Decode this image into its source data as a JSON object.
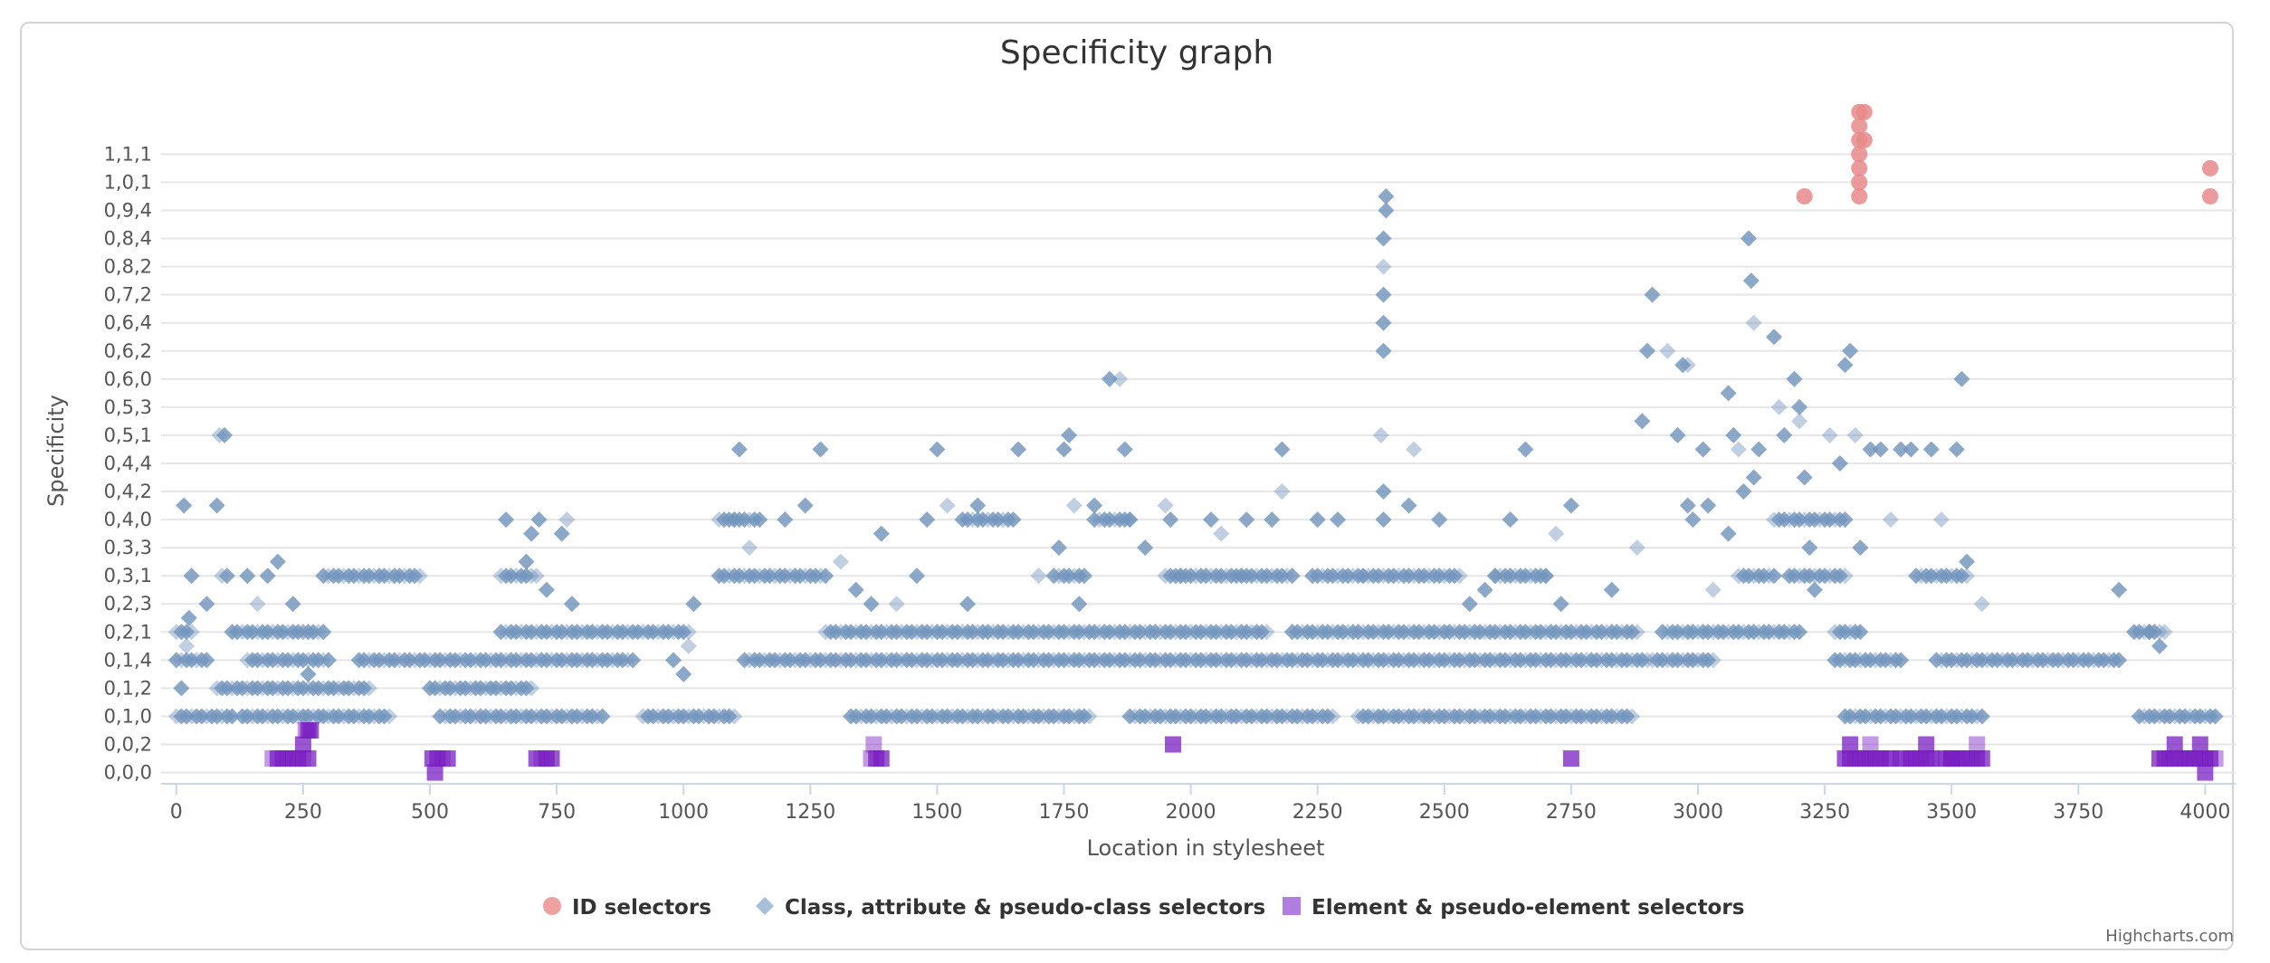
{
  "chart_data": {
    "type": "scatter",
    "title": "Specificity graph",
    "xlabel": "Location in stylesheet",
    "ylabel": "Specificity",
    "xlim": [
      -30,
      4060
    ],
    "x_ticks": [
      0,
      250,
      500,
      750,
      1000,
      1250,
      1500,
      1750,
      2000,
      2250,
      2500,
      2750,
      3000,
      3250,
      3500,
      3750,
      4000
    ],
    "y_categories": [
      "0,0,0",
      "0,0,2",
      "0,1,0",
      "0,1,2",
      "0,1,4",
      "0,2,1",
      "0,2,3",
      "0,3,1",
      "0,3,3",
      "0,4,0",
      "0,4,2",
      "0,4,4",
      "0,5,1",
      "0,5,3",
      "0,6,0",
      "0,6,2",
      "0,6,4",
      "0,7,2",
      "0,8,2",
      "0,8,4",
      "0,9,4",
      "1,0,1",
      "1,1,1"
    ],
    "legend_position": "bottom",
    "grid": true,
    "series": [
      {
        "name": "ID selectors",
        "color": "#e8898a",
        "marker": "circle",
        "points": [
          [
            3210,
            20.5
          ],
          [
            3318,
            20.5
          ],
          [
            3318,
            21
          ],
          [
            3318,
            21.5
          ],
          [
            3318,
            22
          ],
          [
            3318,
            22.5
          ],
          [
            3318,
            23
          ],
          [
            3318,
            23.5
          ],
          [
            3328,
            23.5
          ],
          [
            3328,
            22.5
          ],
          [
            4010,
            20.5
          ],
          [
            4010,
            21.5
          ]
        ]
      },
      {
        "name": "Class, attribute & pseudo-class selectors",
        "color": "#7395bd",
        "marker": "diamond",
        "bands": [
          [
            0,
            110,
            2
          ],
          [
            130,
            420,
            2
          ],
          [
            520,
            840,
            2
          ],
          [
            920,
            1100,
            2
          ],
          [
            1330,
            1800,
            2
          ],
          [
            1880,
            2280,
            2
          ],
          [
            2330,
            2870,
            2
          ],
          [
            3290,
            3560,
            2
          ],
          [
            3870,
            4020,
            2
          ],
          [
            80,
            380,
            3
          ],
          [
            500,
            700,
            3
          ],
          [
            0,
            60,
            4
          ],
          [
            140,
            300,
            4
          ],
          [
            360,
            900,
            4
          ],
          [
            1120,
            2900,
            4
          ],
          [
            2910,
            3030,
            4
          ],
          [
            3270,
            3400,
            4
          ],
          [
            3470,
            3830,
            4
          ],
          [
            0,
            30,
            5
          ],
          [
            110,
            290,
            5
          ],
          [
            640,
            1010,
            5
          ],
          [
            1280,
            2150,
            5
          ],
          [
            2200,
            2880,
            5
          ],
          [
            2930,
            3200,
            5
          ],
          [
            3270,
            3320,
            5
          ],
          [
            3860,
            3910,
            5
          ],
          [
            290,
            480,
            7
          ],
          [
            640,
            700,
            7
          ],
          [
            1070,
            1280,
            7
          ],
          [
            1730,
            1790,
            7
          ],
          [
            1950,
            2200,
            7
          ],
          [
            2240,
            2530,
            7
          ],
          [
            2600,
            2700,
            7
          ],
          [
            3080,
            3150,
            7
          ],
          [
            3180,
            3290,
            7
          ],
          [
            3430,
            3530,
            7
          ],
          [
            1070,
            1150,
            9
          ],
          [
            1550,
            1650,
            9
          ],
          [
            1810,
            1880,
            9
          ],
          [
            3150,
            3290,
            9
          ]
        ],
        "points": [
          [
            10,
            3
          ],
          [
            20,
            4.5
          ],
          [
            25,
            5.5
          ],
          [
            30,
            7
          ],
          [
            60,
            6
          ],
          [
            90,
            7
          ],
          [
            95,
            12
          ],
          [
            100,
            7
          ],
          [
            140,
            7
          ],
          [
            160,
            6
          ],
          [
            180,
            7
          ],
          [
            200,
            7.5
          ],
          [
            230,
            6
          ],
          [
            250,
            5
          ],
          [
            260,
            3.5
          ],
          [
            15,
            9.5
          ],
          [
            80,
            9.5
          ],
          [
            85,
            12
          ],
          [
            650,
            9
          ],
          [
            690,
            7.5
          ],
          [
            700,
            8.5
          ],
          [
            710,
            7
          ],
          [
            715,
            9
          ],
          [
            730,
            6.5
          ],
          [
            760,
            8.5
          ],
          [
            770,
            9
          ],
          [
            780,
            6
          ],
          [
            980,
            4
          ],
          [
            1000,
            3.5
          ],
          [
            1010,
            4.5
          ],
          [
            1020,
            6
          ],
          [
            1100,
            9
          ],
          [
            1110,
            11.5
          ],
          [
            1130,
            8
          ],
          [
            1200,
            9
          ],
          [
            1240,
            9.5
          ],
          [
            1270,
            11.5
          ],
          [
            1310,
            7.5
          ],
          [
            1340,
            6.5
          ],
          [
            1370,
            6
          ],
          [
            1390,
            8.5
          ],
          [
            1420,
            6
          ],
          [
            1460,
            7
          ],
          [
            1480,
            9
          ],
          [
            1500,
            11.5
          ],
          [
            1520,
            9.5
          ],
          [
            1560,
            6
          ],
          [
            1580,
            9.5
          ],
          [
            1660,
            11.5
          ],
          [
            1700,
            7
          ],
          [
            1740,
            8
          ],
          [
            1750,
            11.5
          ],
          [
            1760,
            12
          ],
          [
            1770,
            9.5
          ],
          [
            1780,
            6
          ],
          [
            1810,
            9.5
          ],
          [
            1840,
            14
          ],
          [
            1860,
            14
          ],
          [
            1870,
            11.5
          ],
          [
            1880,
            9
          ],
          [
            1910,
            8
          ],
          [
            1950,
            9.5
          ],
          [
            1960,
            9
          ],
          [
            1980,
            7
          ],
          [
            2040,
            9
          ],
          [
            2060,
            8.5
          ],
          [
            2100,
            7
          ],
          [
            2110,
            9
          ],
          [
            2160,
            9
          ],
          [
            2180,
            10
          ],
          [
            2180,
            11.5
          ],
          [
            2250,
            9
          ],
          [
            2290,
            9
          ],
          [
            2340,
            7
          ],
          [
            2380,
            15
          ],
          [
            2380,
            16
          ],
          [
            2380,
            17
          ],
          [
            2380,
            18
          ],
          [
            2380,
            19
          ],
          [
            2385,
            20
          ],
          [
            2385,
            20.5
          ],
          [
            2375,
            12
          ],
          [
            2380,
            10
          ],
          [
            2380,
            9
          ],
          [
            2430,
            9.5
          ],
          [
            2440,
            11.5
          ],
          [
            2490,
            9
          ],
          [
            2550,
            6
          ],
          [
            2580,
            6.5
          ],
          [
            2600,
            7
          ],
          [
            2630,
            9
          ],
          [
            2660,
            11.5
          ],
          [
            2700,
            7
          ],
          [
            2720,
            8.5
          ],
          [
            2730,
            6
          ],
          [
            2750,
            9.5
          ],
          [
            2830,
            6.5
          ],
          [
            2880,
            8
          ],
          [
            2890,
            12.5
          ],
          [
            2900,
            15
          ],
          [
            2910,
            17
          ],
          [
            2940,
            15
          ],
          [
            2960,
            12
          ],
          [
            2970,
            14.5
          ],
          [
            2980,
            9.5
          ],
          [
            2980,
            14.5
          ],
          [
            2990,
            9
          ],
          [
            3010,
            11.5
          ],
          [
            3020,
            9.5
          ],
          [
            3030,
            6.5
          ],
          [
            3060,
            13.5
          ],
          [
            3060,
            8.5
          ],
          [
            3070,
            12
          ],
          [
            3080,
            11.5
          ],
          [
            3090,
            10
          ],
          [
            3100,
            19
          ],
          [
            3105,
            17.5
          ],
          [
            3110,
            16
          ],
          [
            3110,
            10.5
          ],
          [
            3120,
            11.5
          ],
          [
            3150,
            15.5
          ],
          [
            3160,
            13
          ],
          [
            3170,
            12
          ],
          [
            3190,
            14
          ],
          [
            3200,
            13
          ],
          [
            3200,
            12.5
          ],
          [
            3210,
            10.5
          ],
          [
            3220,
            8
          ],
          [
            3230,
            6.5
          ],
          [
            3260,
            12
          ],
          [
            3280,
            11
          ],
          [
            3290,
            14.5
          ],
          [
            3300,
            15
          ],
          [
            3310,
            12
          ],
          [
            3320,
            8
          ],
          [
            3340,
            11.5
          ],
          [
            3360,
            11.5
          ],
          [
            3380,
            9
          ],
          [
            3400,
            11.5
          ],
          [
            3420,
            11.5
          ],
          [
            3460,
            11.5
          ],
          [
            3480,
            9
          ],
          [
            3510,
            11.5
          ],
          [
            3520,
            14
          ],
          [
            3530,
            7.5
          ],
          [
            3560,
            6
          ],
          [
            3830,
            6.5
          ],
          [
            3890,
            5
          ],
          [
            3910,
            4.5
          ],
          [
            3920,
            5
          ]
        ]
      },
      {
        "name": "Element & pseudo-element selectors",
        "color": "#7a1fc2",
        "marker": "square",
        "bands": [
          [
            190,
            260,
            0.5
          ],
          [
            505,
            540,
            0.5
          ],
          [
            710,
            745,
            0.5
          ],
          [
            1370,
            1390,
            0.5
          ],
          [
            3290,
            3370,
            0.5
          ],
          [
            3400,
            3460,
            0.5
          ],
          [
            3480,
            3560,
            0.5
          ],
          [
            3910,
            4020,
            0.5
          ]
        ],
        "points": [
          [
            250,
            1
          ],
          [
            255,
            1.5
          ],
          [
            260,
            1.5
          ],
          [
            265,
            1.5
          ],
          [
            510,
            0
          ],
          [
            1375,
            1
          ],
          [
            1965,
            1
          ],
          [
            2750,
            0.5
          ],
          [
            3300,
            1
          ],
          [
            3340,
            1
          ],
          [
            3380,
            0.5
          ],
          [
            3450,
            1
          ],
          [
            3500,
            0.5
          ],
          [
            3550,
            1
          ],
          [
            3940,
            1
          ],
          [
            3990,
            1
          ],
          [
            4000,
            0
          ]
        ]
      }
    ]
  },
  "credit": "Highcharts.com"
}
